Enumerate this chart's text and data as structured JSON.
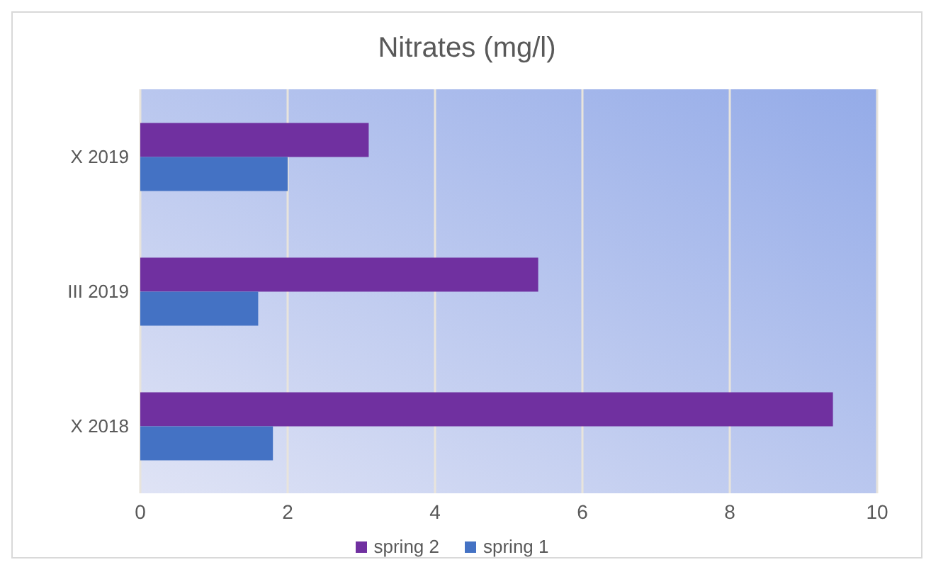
{
  "chart_data": {
    "type": "bar",
    "orientation": "horizontal",
    "title": "Nitrates (mg/l)",
    "categories": [
      "X 2019",
      "III 2019",
      "X 2018"
    ],
    "series": [
      {
        "name": "spring 2",
        "color": "#7030a0",
        "values": [
          3.1,
          5.4,
          9.4
        ]
      },
      {
        "name": "spring 1",
        "color": "#4472c4",
        "values": [
          2.0,
          1.6,
          1.8
        ]
      }
    ],
    "xlim": [
      0,
      10
    ],
    "xticks": [
      0,
      2,
      4,
      6,
      8,
      10
    ],
    "grid": "x",
    "legend": "bottom"
  }
}
